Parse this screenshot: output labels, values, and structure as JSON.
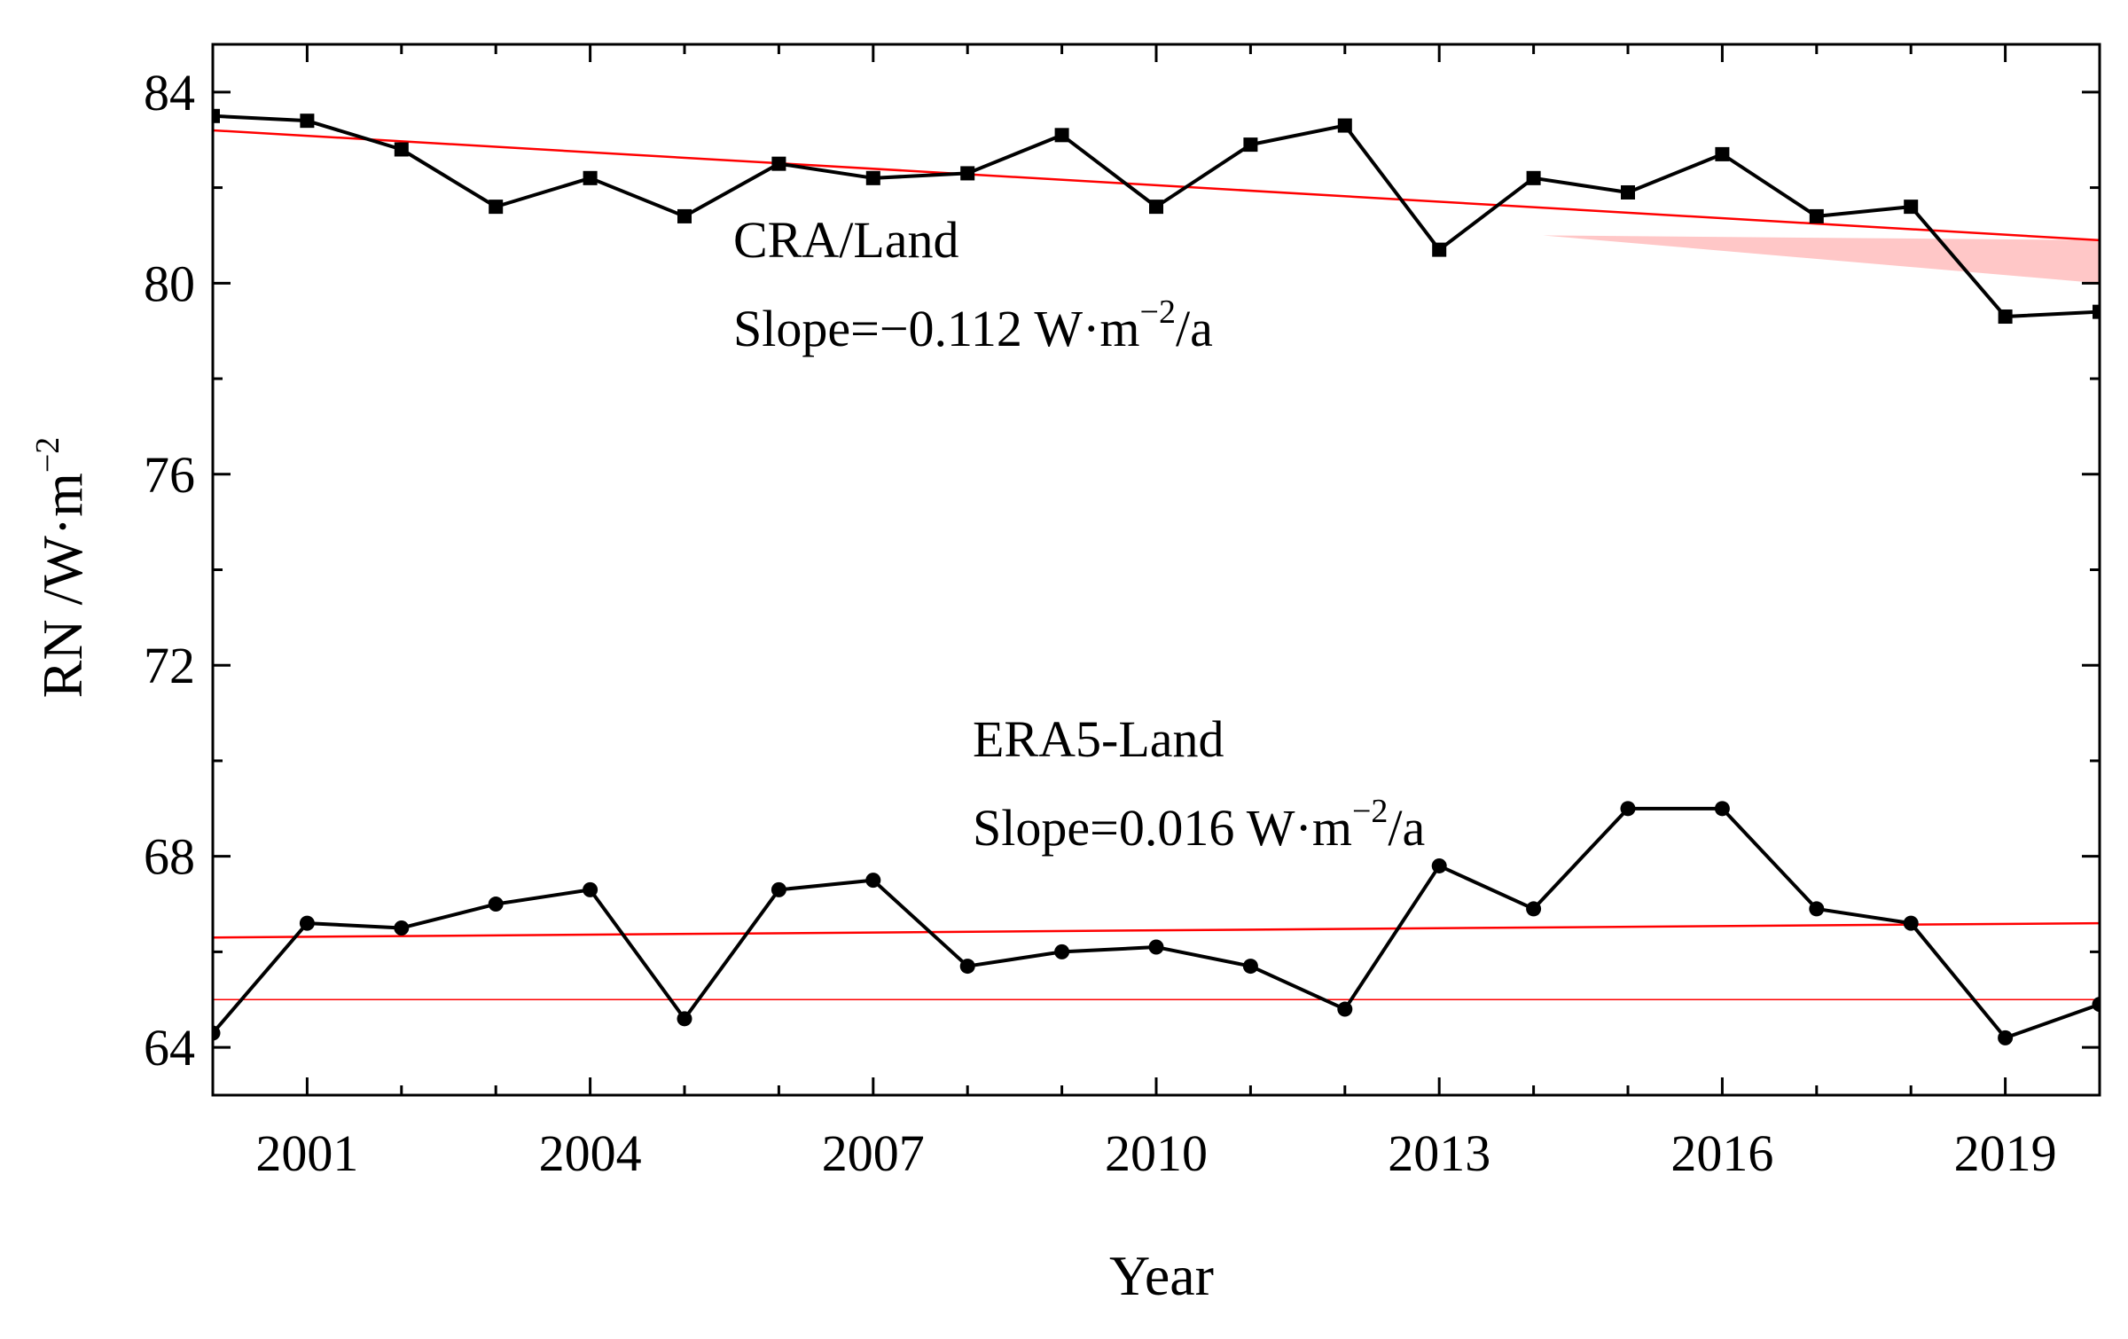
{
  "chart_data": {
    "type": "line",
    "xlabel": "Year",
    "ylabel": "RN /W·m",
    "ylabel_sup": "−2",
    "xlim": [
      2000,
      2020
    ],
    "ylim": [
      63,
      85
    ],
    "x_ticks": [
      2001,
      2004,
      2007,
      2010,
      2013,
      2016,
      2019
    ],
    "y_ticks": [
      64,
      68,
      72,
      76,
      80,
      84
    ],
    "x": [
      2000,
      2001,
      2002,
      2003,
      2004,
      2005,
      2006,
      2007,
      2008,
      2009,
      2010,
      2011,
      2012,
      2013,
      2014,
      2015,
      2016,
      2017,
      2018,
      2019,
      2020
    ],
    "series": [
      {
        "name": "CRA/Land",
        "marker": "square",
        "color": "#000000",
        "values": [
          83.5,
          83.4,
          82.8,
          81.6,
          82.2,
          81.4,
          82.5,
          82.2,
          82.3,
          83.1,
          81.6,
          82.9,
          83.3,
          80.7,
          82.2,
          81.9,
          82.7,
          81.4,
          81.6,
          79.3,
          79.4
        ],
        "trend": {
          "slope": -0.112,
          "start": 83.2,
          "end": 80.9,
          "color": "#ff0000"
        }
      },
      {
        "name": "ERA5-Land",
        "marker": "circle",
        "color": "#000000",
        "values": [
          64.3,
          66.6,
          66.5,
          67.0,
          67.3,
          64.6,
          67.3,
          67.5,
          65.7,
          66.0,
          66.1,
          65.7,
          64.8,
          67.8,
          66.9,
          69.0,
          69.0,
          66.9,
          66.6,
          64.2,
          64.9
        ],
        "trend": {
          "slope": 0.016,
          "start": 66.3,
          "end": 66.6,
          "color": "#ff0000"
        }
      }
    ],
    "reference_line": {
      "value": 65.0,
      "color": "#ff0000"
    },
    "shaded_band": {
      "x_start": 2014.1,
      "x_end": 2020,
      "upper_start": 81.0,
      "upper_end": 80.9,
      "lower_start": 81.0,
      "lower_end": 80.0,
      "color": "#ff9999"
    },
    "annotations": [
      {
        "name": "cra-label",
        "text": "CRA/Land"
      },
      {
        "name": "cra-slope",
        "prefix": "Slope=−0.112 W·m",
        "sup": "−2",
        "suffix": "/a"
      },
      {
        "name": "era-label",
        "text": "ERA5-Land"
      },
      {
        "name": "era-slope",
        "prefix": "Slope=0.016 W·m",
        "sup": "−2",
        "suffix": "/a"
      }
    ]
  }
}
